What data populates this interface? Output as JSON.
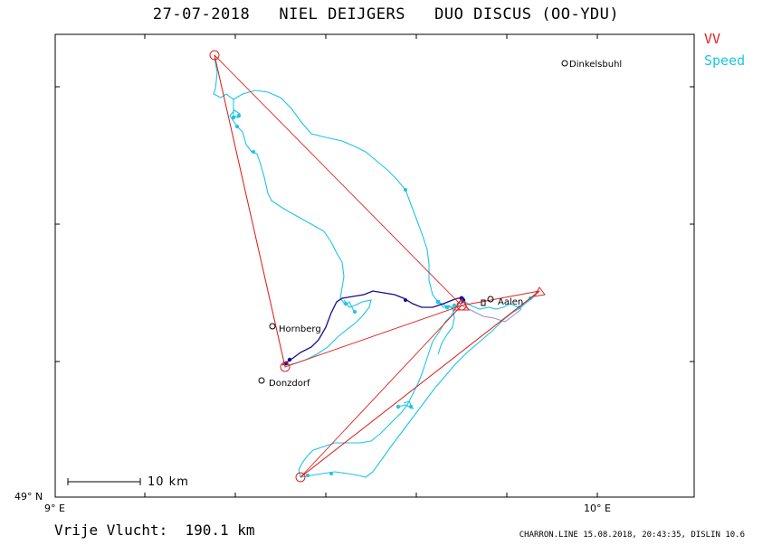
{
  "header": {
    "title": "27-07-2018   NIEL DEIJGERS   DUO DISCUS (OO-YDU)"
  },
  "legend": {
    "vv_label": "VV",
    "speed_label": "Speed",
    "vv_color": "#e0241f",
    "speed_color": "#1ec4e6"
  },
  "axes": {
    "lat_label": "49° N",
    "lon_labels": [
      "9° E",
      "10° E"
    ]
  },
  "places": [
    {
      "name": "Dinkelsbuhl"
    },
    {
      "name": "Aalen"
    },
    {
      "name": "Hornberg"
    },
    {
      "name": "Donzdorf"
    }
  ],
  "scale_bar": {
    "label": "10  km"
  },
  "footer": {
    "distance": "Vrije Vlucht:  190.1 km",
    "credit": "CHARRON.LINE 15.08.2018, 20:43:35, DISLIN 10.6"
  },
  "colors": {
    "track_cyan": "#1ec4e6",
    "track_dark": "#1a0a8c",
    "task_red": "#e0241f",
    "frame": "#000000"
  }
}
